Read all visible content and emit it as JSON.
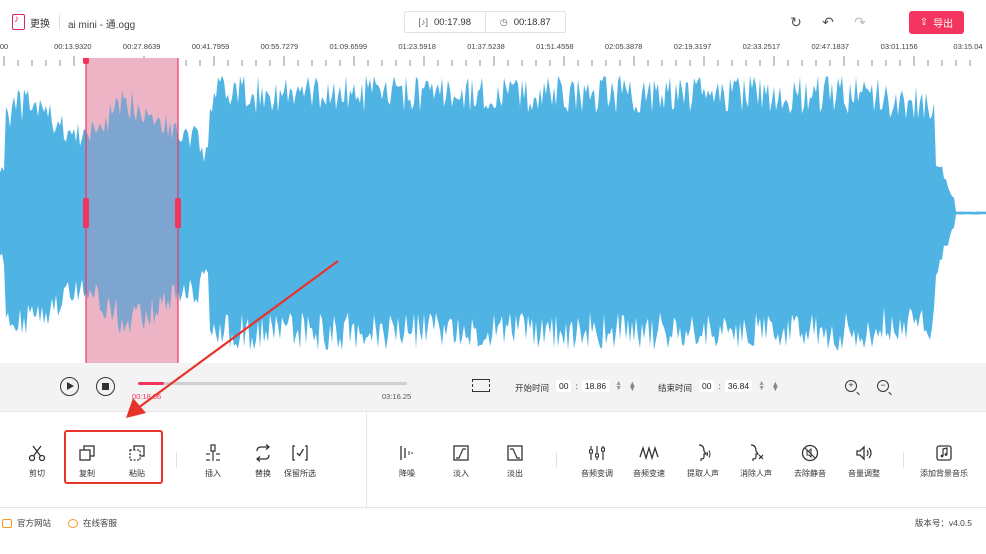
{
  "topbar": {
    "replace_label": "更换",
    "filename": "ai mini - 通.ogg",
    "selection_duration": "00:17.98",
    "selection_length": "00:18.87",
    "export_label": "导出"
  },
  "ruler": {
    "labels": [
      "00",
      "00:13.9320",
      "00:27.8639",
      "00:41.7959",
      "00:55.7279",
      "01:09.6599",
      "01:23.5918",
      "01:37.5238",
      "01:51.4558",
      "02:05.3878",
      "02:19.3197",
      "02:33.2517",
      "02:47.1837",
      "03:01.1156",
      "03:15.04"
    ]
  },
  "waveform": {
    "color": "#4fb3e3",
    "selection_color": "#f9c9d6",
    "selection_start": "00:18.86",
    "selection_end": "00:36.84",
    "duration": "03:16.25"
  },
  "transport": {
    "current_time": "00:18.86",
    "total_time": "03:16.25",
    "progress_percent": 9.6,
    "start_label": "开始时间",
    "start_min": "00",
    "start_sec": "18.86",
    "end_label": "结束时间",
    "end_min": "00",
    "end_sec": "36.84"
  },
  "toolbar": {
    "tools": [
      {
        "label": "剪切",
        "icon": "scissors-icon"
      },
      {
        "label": "复制",
        "icon": "copy-icon"
      },
      {
        "label": "粘贴",
        "icon": "paste-icon"
      },
      {
        "label": "插入",
        "icon": "insert-icon"
      },
      {
        "label": "替换",
        "icon": "replace-icon"
      },
      {
        "label": "保留所选",
        "icon": "keep-selection-icon"
      },
      {
        "label": "降噪",
        "icon": "denoise-icon"
      },
      {
        "label": "淡入",
        "icon": "fade-in-icon"
      },
      {
        "label": "淡出",
        "icon": "fade-out-icon"
      },
      {
        "label": "音频变调",
        "icon": "pitch-icon"
      },
      {
        "label": "音频变速",
        "icon": "speed-icon"
      },
      {
        "label": "提取人声",
        "icon": "extract-voice-icon"
      },
      {
        "label": "消除人声",
        "icon": "remove-voice-icon"
      },
      {
        "label": "去除静音",
        "icon": "remove-silence-icon"
      },
      {
        "label": "音量调整",
        "icon": "volume-icon"
      },
      {
        "label": "添加背景音乐",
        "icon": "add-bgm-icon"
      }
    ]
  },
  "footer": {
    "website": "官方网站",
    "support": "在线客服",
    "version": "版本号：v4.0.5"
  },
  "colors": {
    "accent": "#f3345e",
    "annotation": "#e8332a"
  }
}
